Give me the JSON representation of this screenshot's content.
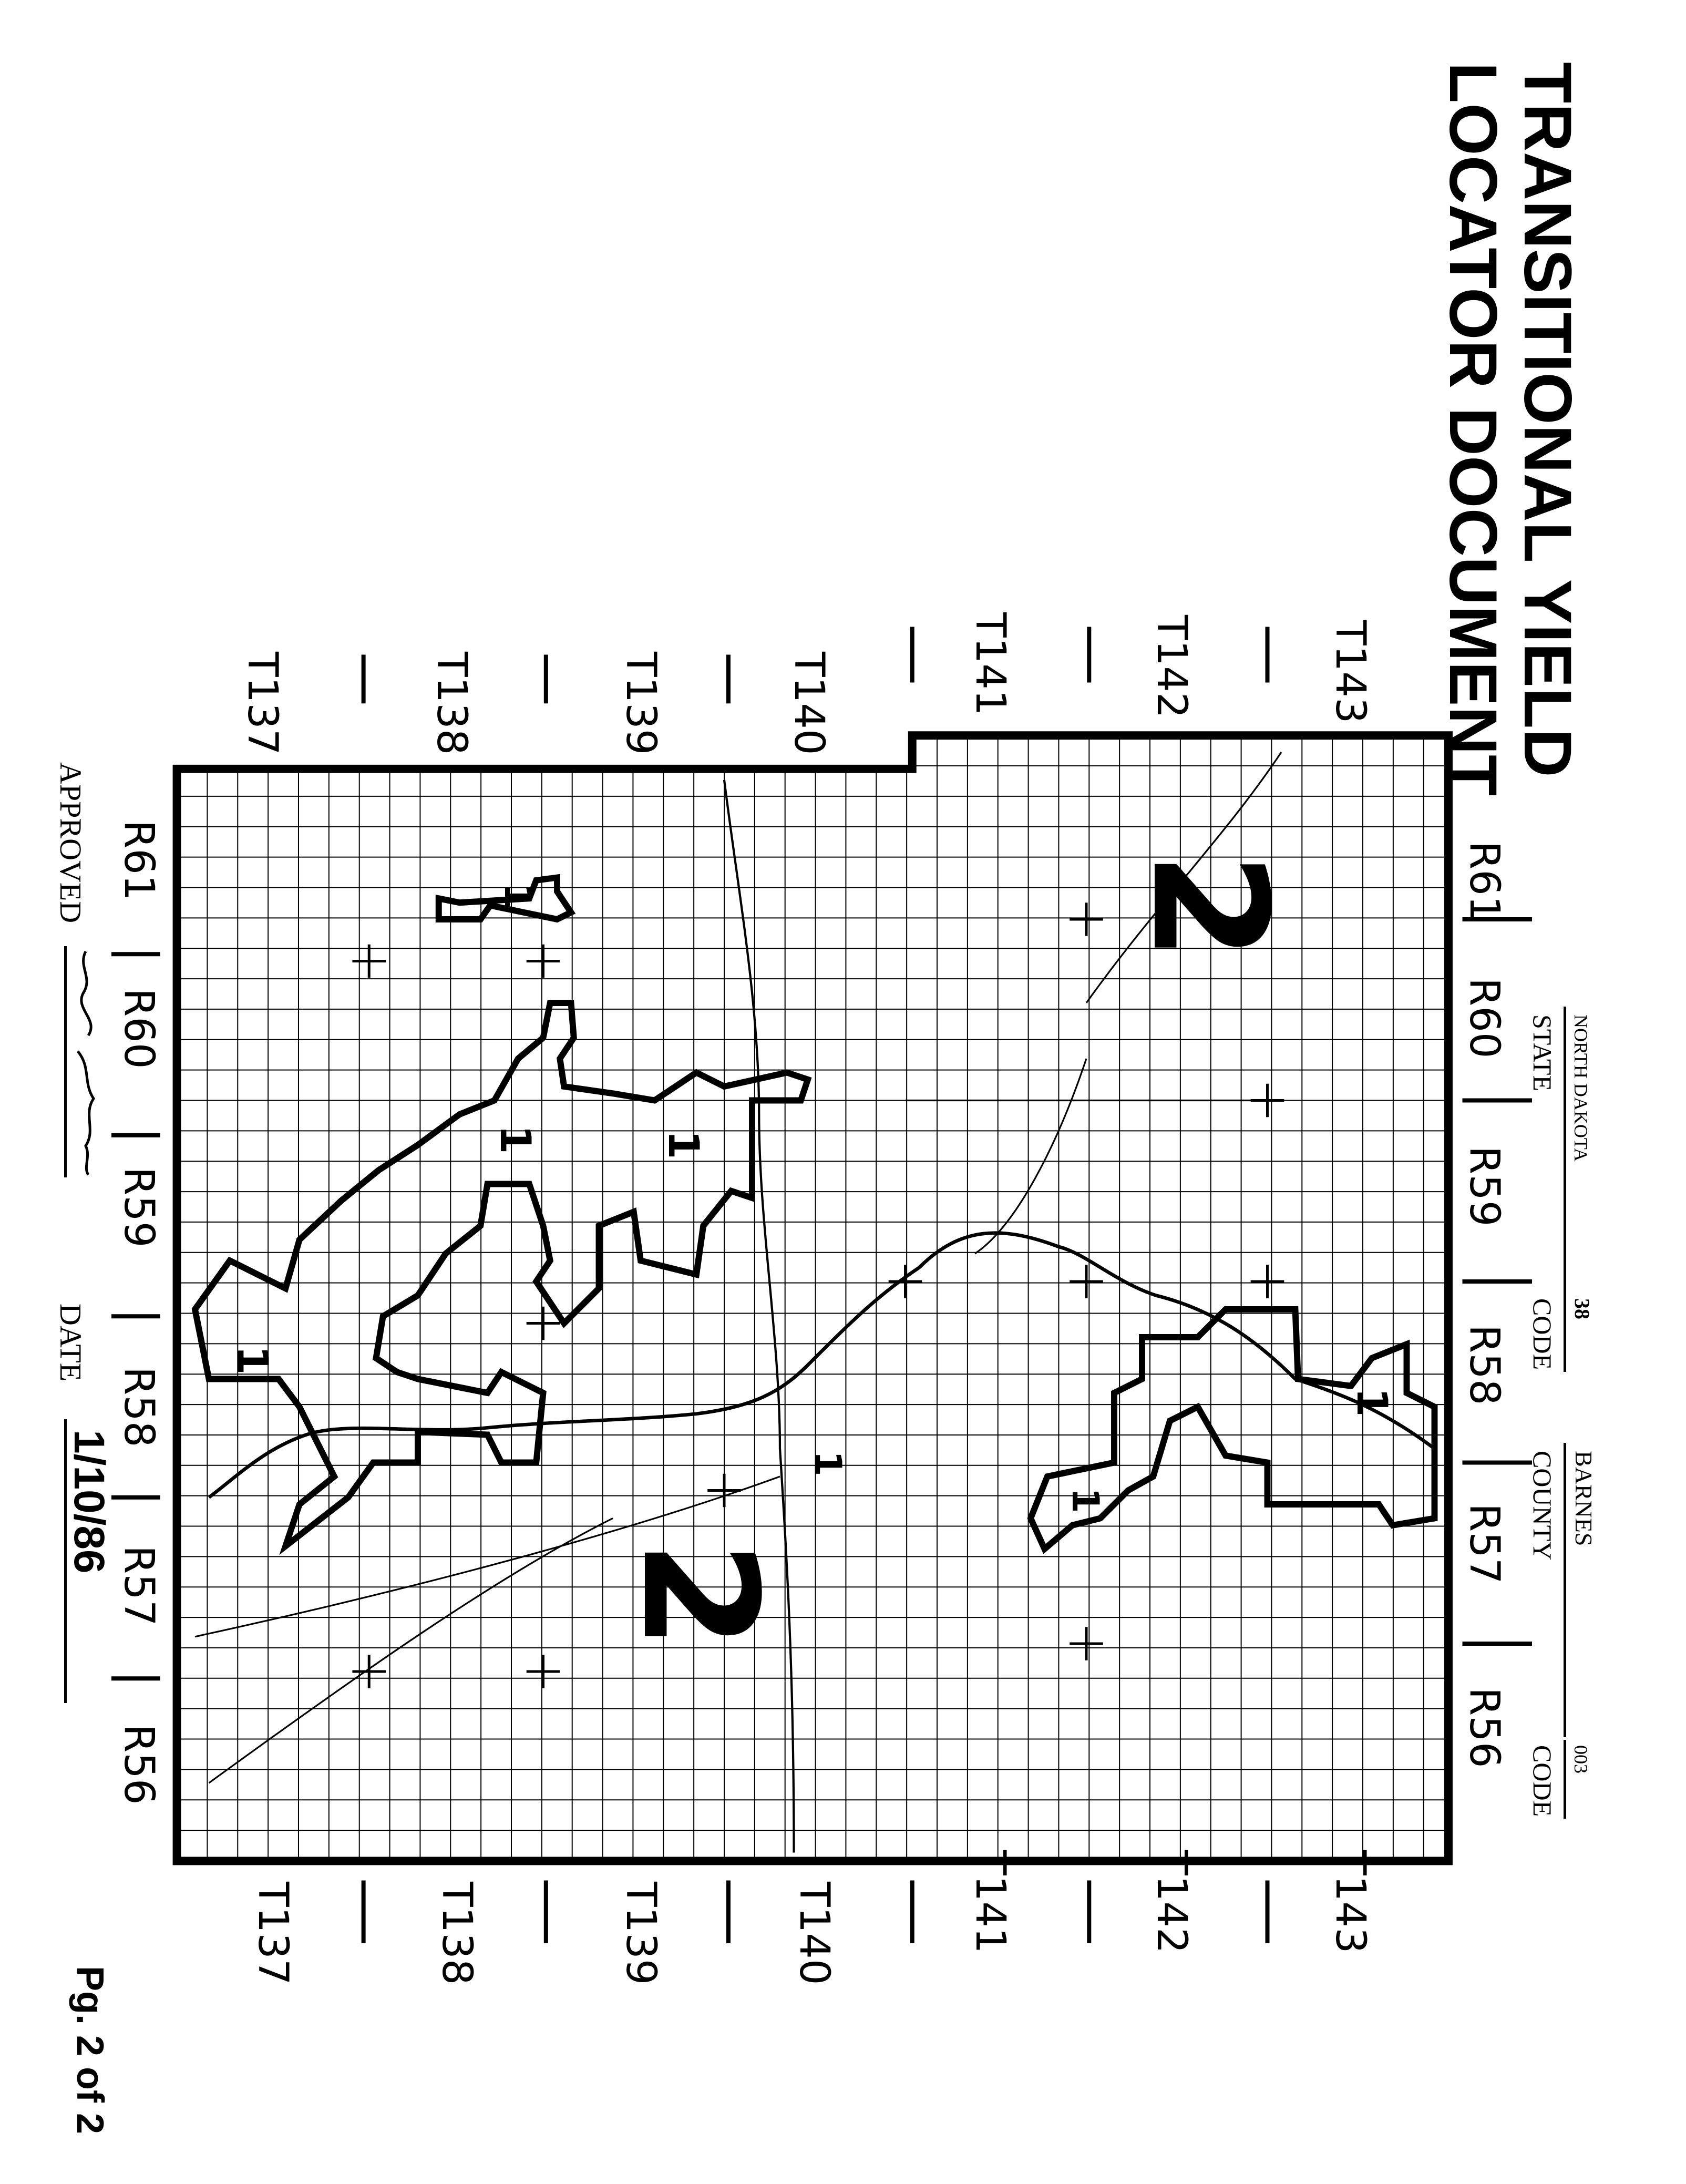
{
  "header": {
    "title_line1": "TRANSITIONAL YIELD",
    "title_line2": "LOCATOR DOCUMENT"
  },
  "state_block": {
    "state_value": "NORTH DAKOTA",
    "state_label": "STATE",
    "state_code_value": "38",
    "state_code_label": "CODE",
    "county_value": "BARNES",
    "county_label": "COUNTY",
    "county_code_value": "003",
    "county_code_label": "CODE"
  },
  "map": {
    "townships_top": [
      "T143",
      "T142",
      "T141",
      "T140",
      "T139",
      "T138",
      "T137"
    ],
    "townships_bottom": [
      "T143",
      "T142",
      "T141",
      "T140",
      "T139",
      "T138",
      "T137"
    ],
    "ranges_right": [
      "R61",
      "R60",
      "R59",
      "R58",
      "R57",
      "R56"
    ],
    "ranges_left": [
      "R61",
      "R60",
      "R59",
      "R58",
      "R57",
      "R56"
    ],
    "zone_labels": [
      "2",
      "2",
      "1",
      "1",
      "1",
      "1",
      "1",
      "1",
      "1"
    ]
  },
  "footer": {
    "approved_label": "APPROVED",
    "date_label": "DATE",
    "date_value": "1/10/86",
    "page": "Pg. 2 of 2"
  },
  "colors": {
    "ink": "#000000",
    "paper": "#ffffff"
  }
}
